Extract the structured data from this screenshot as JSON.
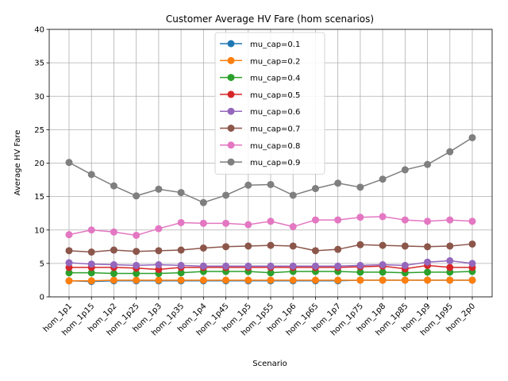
{
  "chart_data": {
    "type": "line",
    "title": "Customer Average HV Fare (hom scenarios)",
    "xlabel": "Scenario",
    "ylabel": "Average HV Fare",
    "ylim": [
      0,
      40
    ],
    "yticks": [
      0,
      5,
      10,
      15,
      20,
      25,
      30,
      35,
      40
    ],
    "grid": true,
    "legend_position": "top-center",
    "categories": [
      "hom_1p1",
      "hom_1p15",
      "hom_1p2",
      "hom_1p25",
      "hom_1p3",
      "hom_1p35",
      "hom_1p4",
      "hom_1p45",
      "hom_1p5",
      "hom_1p55",
      "hom_1p6",
      "hom_1p65",
      "hom_1p7",
      "hom_1p75",
      "hom_1p8",
      "hom_1p85",
      "hom_1p9",
      "hom_1p95",
      "hom_2p0"
    ],
    "series": [
      {
        "name": "mu_cap=0.1",
        "color": "#1f77b4",
        "values": [
          2.4,
          2.3,
          2.4,
          2.4,
          2.4,
          2.4,
          2.4,
          2.4,
          2.4,
          2.4,
          2.4,
          2.4,
          2.4,
          2.5,
          2.5,
          2.5,
          2.5,
          2.5,
          2.5
        ]
      },
      {
        "name": "mu_cap=0.2",
        "color": "#ff7f0e",
        "values": [
          2.4,
          2.4,
          2.5,
          2.5,
          2.5,
          2.5,
          2.5,
          2.5,
          2.5,
          2.5,
          2.5,
          2.5,
          2.5,
          2.5,
          2.5,
          2.5,
          2.5,
          2.5,
          2.5
        ]
      },
      {
        "name": "mu_cap=0.4",
        "color": "#2ca02c",
        "values": [
          3.6,
          3.6,
          3.5,
          3.5,
          3.5,
          3.6,
          3.8,
          3.8,
          3.8,
          3.6,
          3.8,
          3.8,
          3.8,
          3.7,
          3.7,
          3.6,
          3.7,
          3.7,
          3.8
        ]
      },
      {
        "name": "mu_cap=0.5",
        "color": "#d62728",
        "values": [
          4.4,
          4.4,
          4.4,
          4.3,
          4.1,
          4.4,
          4.4,
          4.4,
          4.4,
          4.4,
          4.4,
          4.4,
          4.4,
          4.5,
          4.6,
          4.2,
          4.7,
          4.4,
          4.4
        ]
      },
      {
        "name": "mu_cap=0.6",
        "color": "#9467bd",
        "values": [
          5.1,
          4.9,
          4.8,
          4.7,
          4.8,
          4.7,
          4.6,
          4.6,
          4.6,
          4.6,
          4.6,
          4.6,
          4.6,
          4.7,
          4.8,
          4.7,
          5.2,
          5.4,
          5.0
        ]
      },
      {
        "name": "mu_cap=0.7",
        "color": "#8c564b",
        "values": [
          6.9,
          6.7,
          7.0,
          6.8,
          6.9,
          7.0,
          7.3,
          7.5,
          7.6,
          7.7,
          7.6,
          6.9,
          7.1,
          7.8,
          7.7,
          7.6,
          7.5,
          7.6,
          7.9
        ]
      },
      {
        "name": "mu_cap=0.8",
        "color": "#e377c2",
        "values": [
          9.3,
          10.0,
          9.7,
          9.2,
          10.2,
          11.1,
          11.0,
          11.0,
          10.8,
          11.3,
          10.5,
          11.5,
          11.5,
          11.9,
          12.0,
          11.5,
          11.3,
          11.5,
          11.3
        ]
      },
      {
        "name": "mu_cap=0.9",
        "color": "#7f7f7f",
        "values": [
          20.1,
          18.3,
          16.6,
          15.1,
          16.1,
          15.6,
          14.1,
          15.2,
          16.7,
          16.8,
          15.2,
          16.2,
          17.0,
          16.4,
          17.6,
          19.0,
          19.8,
          21.7,
          23.8
        ]
      }
    ]
  }
}
